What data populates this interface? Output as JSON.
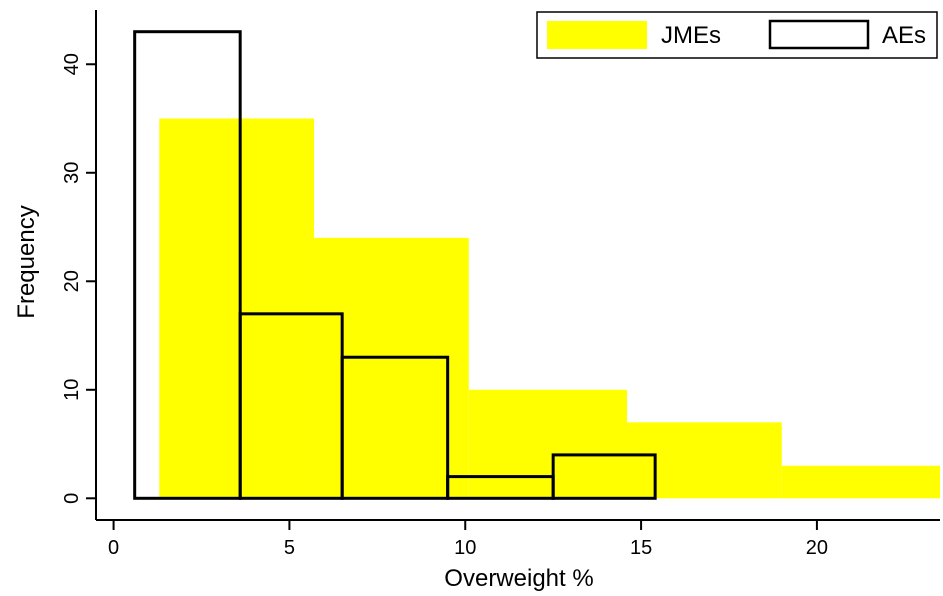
{
  "chart_data": {
    "type": "bar",
    "xlabel": "Overweight %",
    "ylabel": "Frequency",
    "xlim": [
      -0.5,
      23.5
    ],
    "ylim": [
      -2,
      45
    ],
    "x_ticks": [
      0,
      5,
      10,
      15,
      20
    ],
    "y_ticks": [
      0,
      10,
      20,
      30,
      40
    ],
    "grid": false,
    "legend_position": "top-right",
    "series": [
      {
        "name": "JMEs",
        "style": "filled",
        "color": "#ffff00",
        "bins": [
          {
            "x0": 1.3,
            "x1": 5.7,
            "value": 35
          },
          {
            "x0": 5.7,
            "x1": 10.1,
            "value": 24
          },
          {
            "x0": 10.1,
            "x1": 14.6,
            "value": 10
          },
          {
            "x0": 14.6,
            "x1": 19.0,
            "value": 7
          },
          {
            "x0": 19.0,
            "x1": 23.5,
            "value": 3
          }
        ]
      },
      {
        "name": "AEs",
        "style": "outline",
        "color": "#000000",
        "bins": [
          {
            "x0": 0.6,
            "x1": 3.6,
            "value": 43
          },
          {
            "x0": 3.6,
            "x1": 6.5,
            "value": 17
          },
          {
            "x0": 6.5,
            "x1": 9.5,
            "value": 13
          },
          {
            "x0": 9.5,
            "x1": 12.5,
            "value": 2
          },
          {
            "x0": 12.5,
            "x1": 15.4,
            "value": 4
          }
        ]
      }
    ]
  }
}
